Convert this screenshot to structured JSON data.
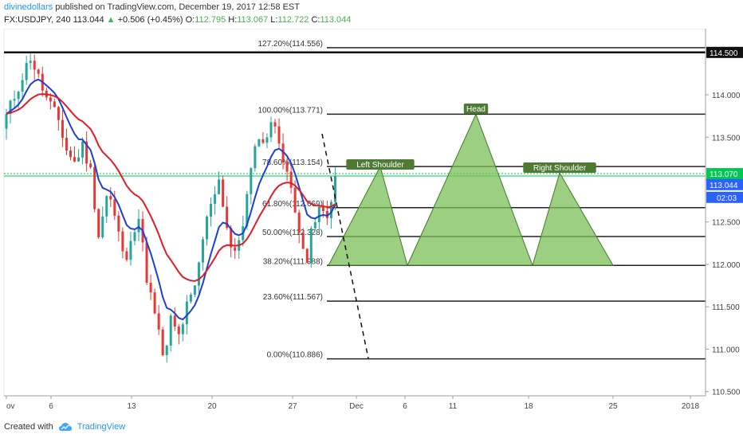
{
  "header": {
    "author": "divinedollars",
    "published": "published on TradingView.com, December 19, 2017 12:58 EST",
    "symbol": "FX:USDJPY, 240",
    "last": "113.044",
    "change": "+0.506 (+0.45%)",
    "o_label": "O:",
    "o": "112.795",
    "h_label": "H:",
    "h": "113.067",
    "l_label": "L:",
    "l": "112.722",
    "c_label": "C:",
    "c": "113.044"
  },
  "footer": {
    "created_with": "Created with",
    "brand": "TradingView"
  },
  "colors": {
    "bull": "#26a69a",
    "bear": "#e53935",
    "ema_fast": "#1e3fd6",
    "ema_slow": "#e31b23",
    "pattern_fill": "#7cbf5a",
    "pattern_stroke": "#3c7a2a",
    "pattern_label_bg": "#4e7a34",
    "last_price_bg": "#2962ff",
    "green_line": "#00c853"
  },
  "chart_data": {
    "type": "candlestick",
    "title": "",
    "xlabel": "",
    "ylabel": "",
    "ylim": [
      110.45,
      114.78
    ],
    "x_ticks": [
      "ov",
      "6",
      "13",
      "20",
      "27",
      "Dec",
      "6",
      "11",
      "18",
      "25",
      "2018"
    ],
    "y_ticks": [
      "114.000",
      "113.500",
      "113.000",
      "112.500",
      "112.000",
      "111.500",
      "111.000",
      "110.500"
    ],
    "price_path": [
      [
        0,
        113.75
      ],
      [
        3,
        114.1
      ],
      [
        6,
        114.45
      ],
      [
        8,
        114.2
      ],
      [
        10,
        113.95
      ],
      [
        13,
        113.7
      ],
      [
        15,
        113.35
      ],
      [
        17,
        113.2
      ],
      [
        19,
        113.4
      ],
      [
        21,
        113.1
      ],
      [
        23,
        112.35
      ],
      [
        25,
        112.8
      ],
      [
        26,
        112.75
      ],
      [
        28,
        112.35
      ],
      [
        30,
        112.0
      ],
      [
        31,
        112.35
      ],
      [
        33,
        112.55
      ],
      [
        35,
        111.85
      ],
      [
        37,
        111.4
      ],
      [
        39,
        110.95
      ],
      [
        40,
        111.0
      ],
      [
        41,
        111.35
      ],
      [
        43,
        111.15
      ],
      [
        45,
        111.5
      ],
      [
        47,
        111.7
      ],
      [
        49,
        112.3
      ],
      [
        51,
        112.75
      ],
      [
        53,
        113.0
      ],
      [
        55,
        112.45
      ],
      [
        56,
        112.2
      ],
      [
        57,
        112.1
      ],
      [
        59,
        112.5
      ],
      [
        61,
        113.1
      ],
      [
        63,
        113.55
      ],
      [
        64,
        113.4
      ],
      [
        65,
        113.55
      ],
      [
        66,
        113.7
      ],
      [
        68,
        113.45
      ],
      [
        70,
        113.1
      ],
      [
        72,
        112.6
      ],
      [
        73,
        112.45
      ],
      [
        75,
        112.05
      ],
      [
        76,
        112.35
      ],
      [
        78,
        112.65
      ],
      [
        80,
        112.55
      ],
      [
        81,
        112.8
      ],
      [
        82,
        113.04
      ]
    ],
    "series": [
      {
        "type": "ema",
        "period": 8,
        "color": "#1e3fd6"
      },
      {
        "type": "ema",
        "period": 21,
        "color": "#e31b23"
      }
    ],
    "horizontal_lines": [
      {
        "label": "127.20%(114.556)",
        "value": 114.556
      },
      {
        "label": "100.00%(113.771)",
        "value": 113.771
      },
      {
        "label": "78.60%(113.154)",
        "value": 113.154
      },
      {
        "label": "61.80%(112.669)",
        "value": 112.669
      },
      {
        "label": "50.00%(112.328)",
        "value": 112.328
      },
      {
        "label": "38.20%(111.988)",
        "value": 111.988
      },
      {
        "label": "23.60%(111.567)",
        "value": 111.567
      },
      {
        "label": "0.00%(110.886)",
        "value": 110.886
      }
    ],
    "resistance_line": {
      "value": 114.5,
      "label": "114.500"
    },
    "green_line": {
      "value": 113.07,
      "label": "113.070"
    },
    "last_price": {
      "value": 113.044,
      "label": "113.044",
      "countdown": "02:03"
    },
    "pattern_labels": [
      "Left Shoulder",
      "Head",
      "Right Shoulder"
    ]
  }
}
